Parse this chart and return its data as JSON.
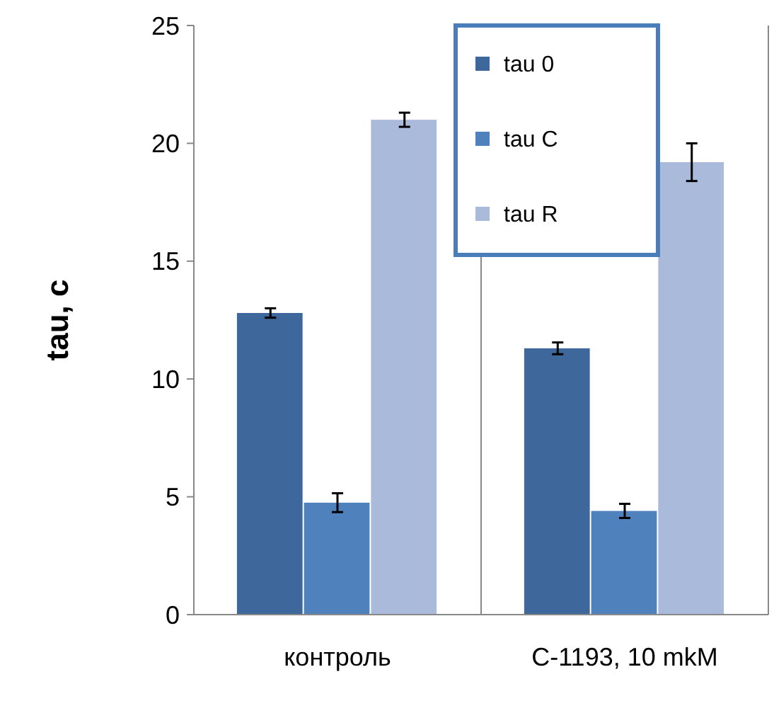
{
  "chart_data": {
    "type": "bar",
    "ylabel": "tau, c",
    "categories": [
      "контроль",
      "С-1193, 10 mkM"
    ],
    "series": [
      {
        "name": "tau 0",
        "color": "#3e679b",
        "values": [
          12.8,
          11.3
        ],
        "errors": [
          0.2,
          0.25
        ]
      },
      {
        "name": "tau C",
        "color": "#4f81bd",
        "values": [
          4.75,
          4.4
        ],
        "errors": [
          0.4,
          0.3
        ]
      },
      {
        "name": "tau R",
        "color": "#a9badb",
        "values": [
          21.0,
          19.2
        ],
        "errors": [
          0.3,
          0.8
        ]
      }
    ],
    "ylim": [
      0,
      25
    ],
    "yticks": [
      0,
      5,
      10,
      15,
      20,
      25
    ],
    "grid": "x",
    "legend": "top right"
  }
}
